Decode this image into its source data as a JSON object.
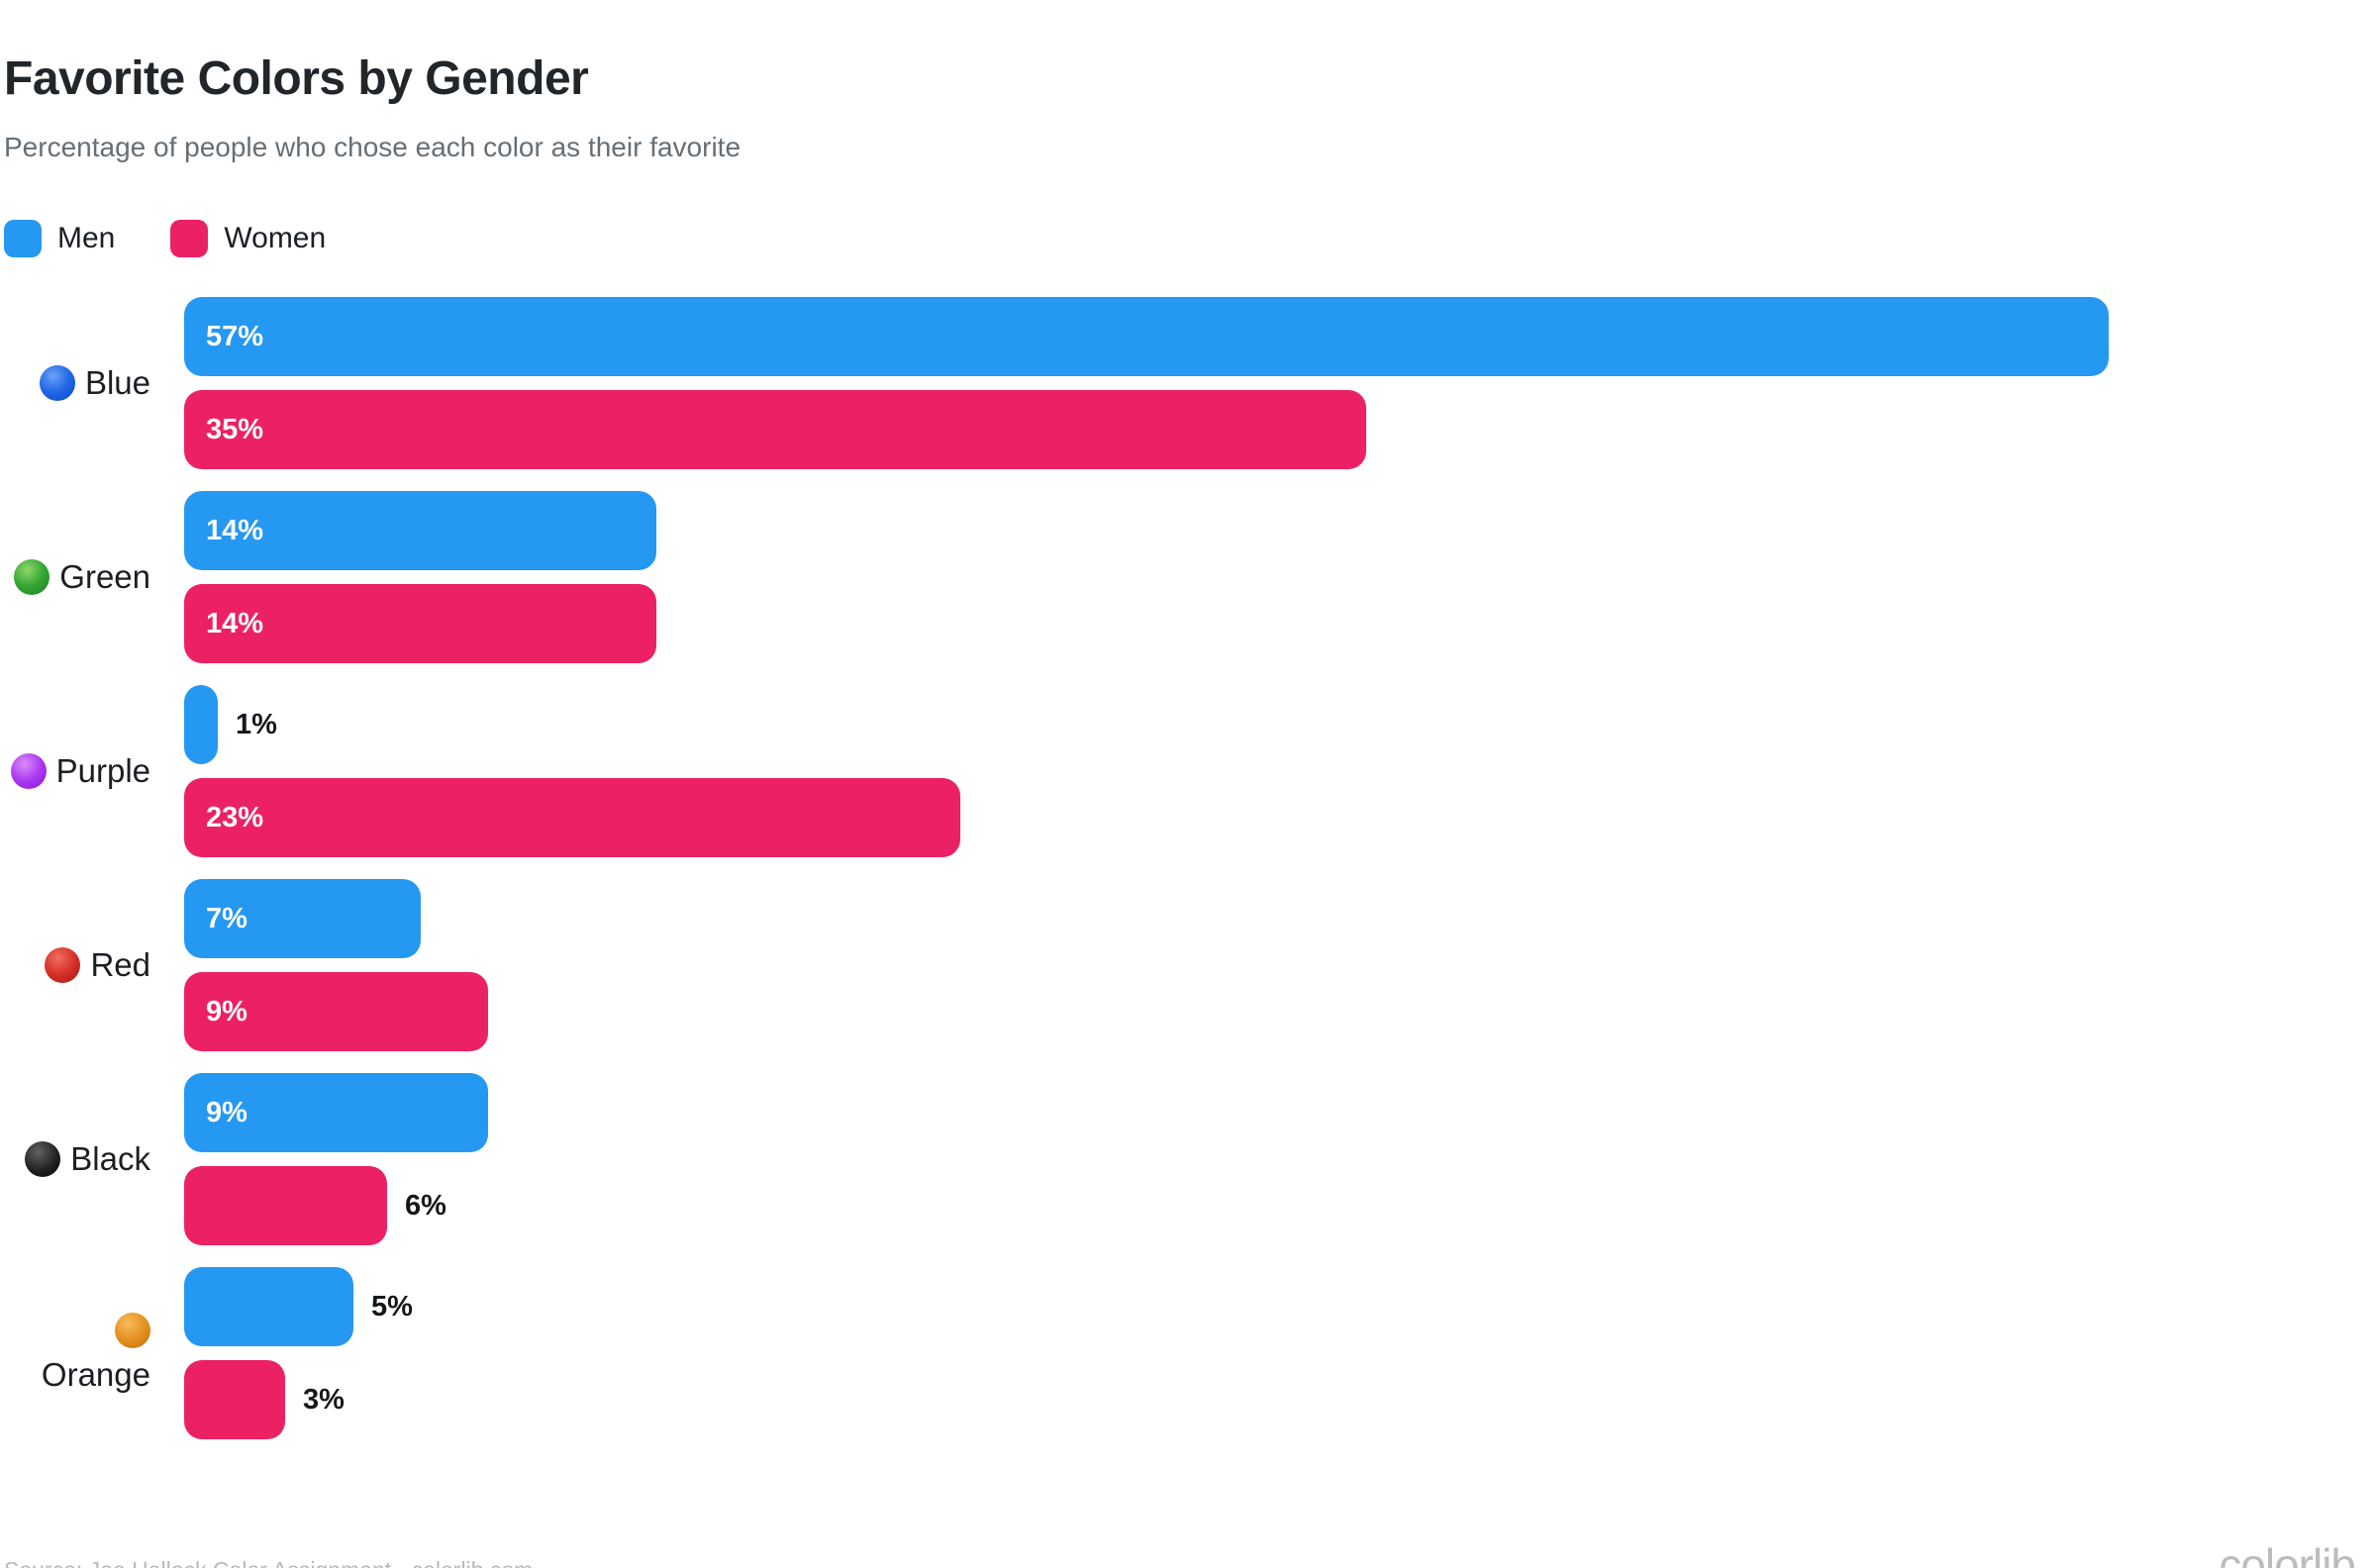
{
  "header": {
    "title": "Favorite Colors by Gender",
    "subtitle": "Percentage of people who chose each color as their favorite"
  },
  "legend": [
    {
      "label": "Men",
      "color": "#2598F2"
    },
    {
      "label": "Women",
      "color": "#EC2163"
    }
  ],
  "chart_data": {
    "type": "bar",
    "orientation": "horizontal",
    "title": "Favorite Colors by Gender",
    "subtitle": "Percentage of people who chose each color as their favorite",
    "categories": [
      "Blue",
      "Green",
      "Purple",
      "Red",
      "Black",
      "Orange"
    ],
    "category_icons": [
      "blue-circle-icon",
      "green-circle-icon",
      "purple-circle-icon",
      "red-circle-icon",
      "black-circle-icon",
      "orange-circle-icon"
    ],
    "series": [
      {
        "name": "Men",
        "color": "#2598F2",
        "values": [
          57,
          14,
          1,
          7,
          9,
          5
        ]
      },
      {
        "name": "Women",
        "color": "#EC2163",
        "values": [
          35,
          14,
          23,
          9,
          6,
          3
        ]
      }
    ],
    "value_suffix": "%",
    "xlim": [
      0,
      60
    ],
    "grid": false,
    "legend_position": "top-left",
    "value_labels": "inside-when-wide-else-outside"
  },
  "footer": {
    "source": "Source: Joe Hallock Color Assignment · colorlib.com",
    "logo_text": "colorlib",
    "logo_dot_color": "#cfe6ad"
  }
}
